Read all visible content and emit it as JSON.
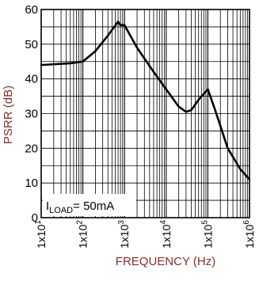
{
  "chart_data": {
    "type": "line",
    "title": "",
    "xlabel": "FREQUENCY (Hz)",
    "ylabel": "PSRR (dB)",
    "x_scale": "log",
    "xlim": [
      10,
      1000000
    ],
    "ylim": [
      0,
      60
    ],
    "grid": true,
    "legend": "none",
    "x_ticks": [
      {
        "base": "1x10",
        "exp": "1"
      },
      {
        "base": "1x10",
        "exp": "2"
      },
      {
        "base": "1x10",
        "exp": "3"
      },
      {
        "base": "1x10",
        "exp": "4"
      },
      {
        "base": "1x10",
        "exp": "5"
      },
      {
        "base": "1x10",
        "exp": "6"
      }
    ],
    "y_ticks": [
      "0",
      "10",
      "20",
      "30",
      "40",
      "50",
      "60"
    ],
    "annotation": {
      "prefix": "I",
      "sub": "LOAD",
      "suffix": "= 50mA"
    },
    "series": [
      {
        "name": "",
        "x": [
          10,
          50,
          100,
          200,
          400,
          700,
          800,
          1000,
          1300,
          2000,
          5000,
          10000,
          20000,
          30000,
          40000,
          60000,
          100000,
          150000,
          300000,
          600000,
          1000000
        ],
        "y": [
          44,
          44.5,
          45,
          48,
          52.5,
          56.5,
          55.5,
          55.5,
          53,
          49,
          42,
          37,
          32,
          30.5,
          31,
          34,
          37,
          31,
          20,
          14,
          11
        ]
      }
    ]
  },
  "colors": {
    "line": "#000000",
    "grid": "#000000",
    "text": "#8a2b2b"
  }
}
